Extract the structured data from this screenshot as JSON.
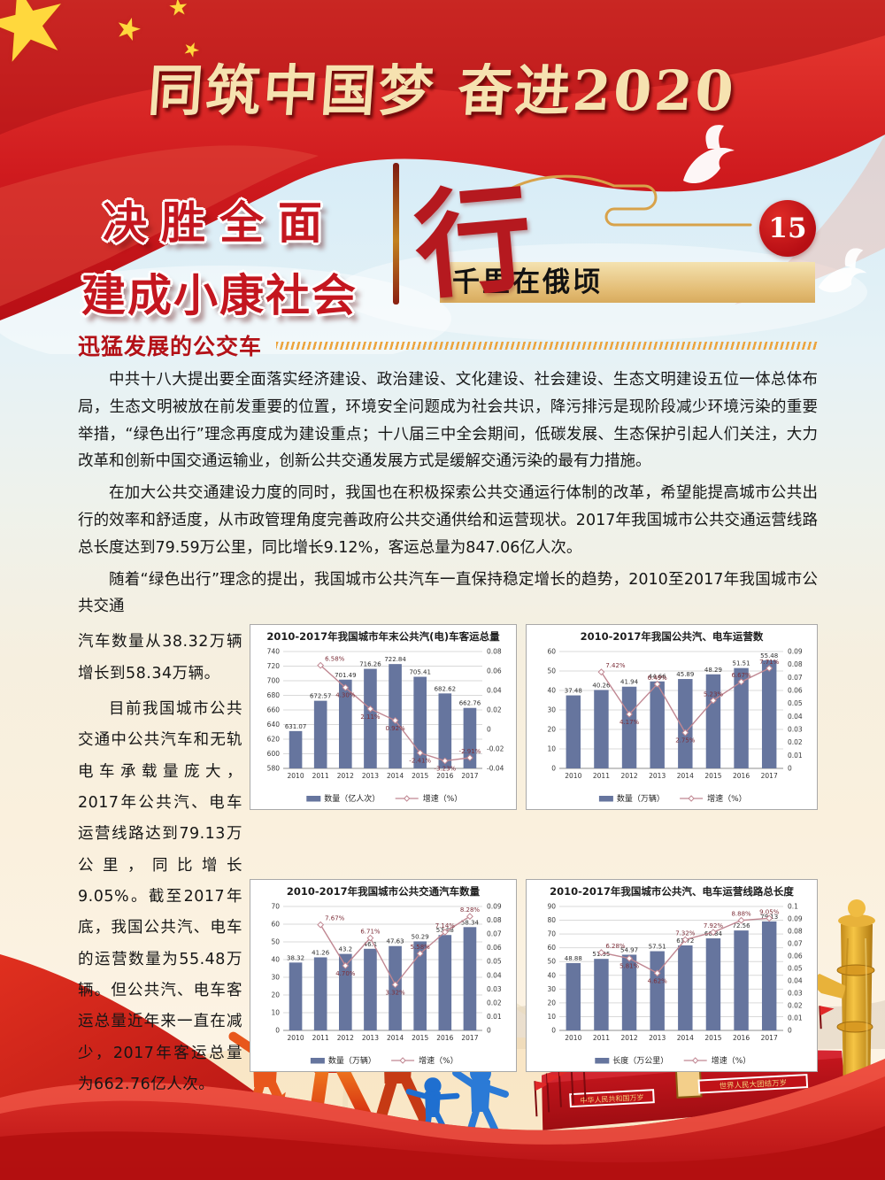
{
  "header": {
    "main_title": "同筑中国梦 奋进2020",
    "slogan_line1": "决胜全面",
    "slogan_line2": "建成小康社会",
    "calligraphy_char": "行",
    "issue_number": "15",
    "subtitle_bar": "千里在俄顷",
    "section_title": "迅猛发展的公交车"
  },
  "icons": {
    "star": "★"
  },
  "article": {
    "p1": "中共十八大提出要全面落实经济建设、政治建设、文化建设、社会建设、生态文明建设五位一体总体布局，生态文明被放在前发重要的位置，环境安全问题成为社会共识，降污排污是现阶段减少环境污染的重要举措，“绿色出行”理念再度成为建设重点；十八届三中全会期间，低碳发展、生态保护引起人们关注，大力改革和创新中国交通运输业，创新公共交通发展方式是缓解交通污染的最有力措施。",
    "p2": "在加大公共交通建设力度的同时，我国也在积极探索公共交通运行体制的改革，希望能提高城市公共出行的效率和舒适度，从市政管理角度完善政府公共交通供给和运营现状。2017年我国城市公共交通运营线路总长度达到79.59万公里，同比增长9.12%，客运总量为847.06亿人次。",
    "p3_intro": "随着“绿色出行”理念的提出，我国城市公共汽车一直保持稳定增长的趋势，2010至2017年我国城市公共交通",
    "p3_side": "汽车数量从38.32万辆增长到58.34万辆。",
    "p4_side": "目前我国城市公共交通中公共汽车和无轨电车承载量庞大，2017年公共汽、电车运营线路达到79.13万公里，同比增长9.05%。截至2017年底，我国公共汽、电车的运营数量为55.48万辆。但公共汽、电车客运总量近年来一直在减少，2017年客运总量为662.76亿人次。"
  },
  "scene": {
    "plaque_left": "中华人民共和国万岁",
    "plaque_right": "世界人民大团结万岁"
  },
  "colors": {
    "bar_fill": "#66759E",
    "line_color": "#C08792",
    "pct_label": "#7C2E38",
    "accent_red": "#C4161F",
    "gold": "#D8A24A",
    "panel_border": "#A9A9A9"
  },
  "chart_data": [
    {
      "type": "bar",
      "title": "2010-2017年我国城市年末公共汽(电)车客运总量",
      "categories": [
        "2010",
        "2011",
        "2012",
        "2013",
        "2014",
        "2015",
        "2016",
        "2017"
      ],
      "bar": {
        "name": "数量（亿人次）",
        "values": [
          631.07,
          672.57,
          701.49,
          716.26,
          722.84,
          705.41,
          682.62,
          662.76
        ]
      },
      "line": {
        "name": "增速（%）",
        "values": [
          null,
          0.0658,
          0.043,
          0.0211,
          0.0092,
          -0.0241,
          -0.0323,
          -0.0291
        ],
        "labels": [
          "",
          "6.58%",
          "4.30%",
          "2.11%",
          "0.92%",
          "-2.41%",
          "-3.23%",
          "-2.91%"
        ]
      },
      "left_axis": {
        "min": 580,
        "max": 740,
        "step": 20
      },
      "right_axis": {
        "min": -0.04,
        "max": 0.08,
        "step": 0.02
      },
      "legend_position": "bottom",
      "grid": true
    },
    {
      "type": "bar",
      "title": "2010-2017年我国公共汽、电车运营数",
      "categories": [
        "2010",
        "2011",
        "2012",
        "2013",
        "2014",
        "2015",
        "2016",
        "2017"
      ],
      "bar": {
        "name": "数量（万辆）",
        "values": [
          37.48,
          40.26,
          41.94,
          44.66,
          45.89,
          48.29,
          51.51,
          55.48
        ]
      },
      "line": {
        "name": "增速（%）",
        "values": [
          null,
          0.0742,
          0.0417,
          0.0649,
          0.0275,
          0.0523,
          0.0667,
          0.0771
        ],
        "labels": [
          "",
          "7.42%",
          "4.17%",
          "6.49%",
          "2.75%",
          "5.23%",
          "6.67%",
          "7.71%"
        ]
      },
      "left_axis": {
        "min": 0,
        "max": 60,
        "step": 10
      },
      "right_axis": {
        "min": 0,
        "max": 0.09,
        "step": 0.01
      },
      "legend_position": "bottom",
      "grid": true
    },
    {
      "type": "bar",
      "title": "2010-2017年我国城市公共交通汽车数量",
      "categories": [
        "2010",
        "2011",
        "2012",
        "2013",
        "2014",
        "2015",
        "2016",
        "2017"
      ],
      "bar": {
        "name": "数量（万辆）",
        "values": [
          38.32,
          41.26,
          43.2,
          46.1,
          47.63,
          50.29,
          53.88,
          58.34
        ]
      },
      "line": {
        "name": "增速（%）",
        "values": [
          null,
          0.0767,
          0.047,
          0.0671,
          0.0332,
          0.0558,
          0.0714,
          0.0828
        ],
        "labels": [
          "",
          "7.67%",
          "4.70%",
          "6.71%",
          "3.32%",
          "5.58%",
          "7.14%",
          "8.28%"
        ]
      },
      "left_axis": {
        "min": 0,
        "max": 70,
        "step": 10
      },
      "right_axis": {
        "min": 0,
        "max": 0.09,
        "step": 0.01
      },
      "legend_position": "bottom",
      "grid": true
    },
    {
      "type": "bar",
      "title": "2010-2017年我国城市公共汽、电车运营线路总长度",
      "categories": [
        "2010",
        "2011",
        "2012",
        "2013",
        "2014",
        "2015",
        "2016",
        "2017"
      ],
      "bar": {
        "name": "长度（万公里）",
        "values": [
          48.88,
          51.95,
          54.97,
          57.51,
          61.72,
          66.84,
          72.56,
          79.13
        ]
      },
      "line": {
        "name": "增速（%）",
        "values": [
          null,
          0.0628,
          0.0581,
          0.0462,
          0.0732,
          0.0792,
          0.0888,
          0.0905
        ],
        "labels": [
          "",
          "6.28%",
          "5.81%",
          "4.62%",
          "7.32%",
          "7.92%",
          "8.88%",
          "9.05%"
        ]
      },
      "left_axis": {
        "min": 0,
        "max": 90,
        "step": 10
      },
      "right_axis": {
        "min": 0,
        "max": 0.1,
        "step": 0.01
      },
      "legend_position": "bottom",
      "grid": true
    }
  ]
}
